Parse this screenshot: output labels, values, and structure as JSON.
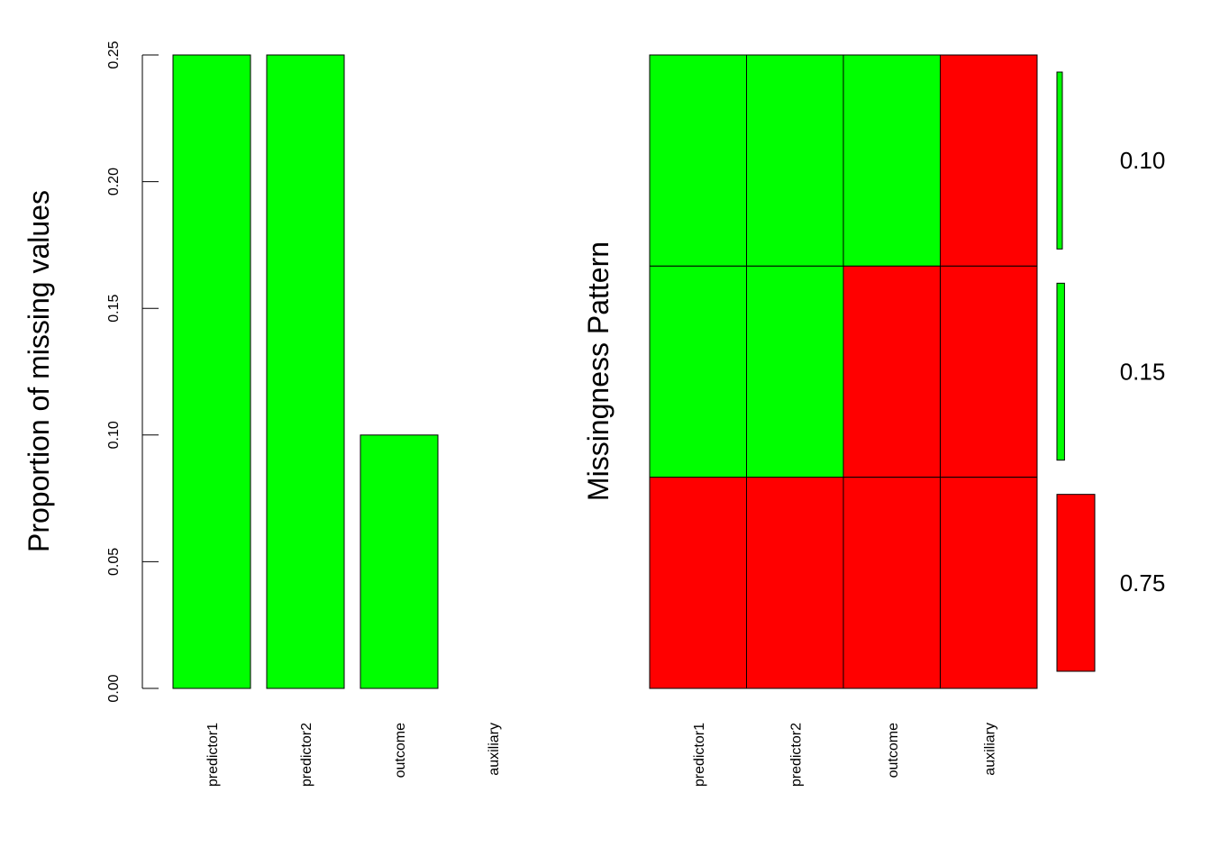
{
  "colors": {
    "observed": "#00ff00",
    "missing": "#ff0000",
    "stroke": "#000000"
  },
  "chart_data": [
    {
      "type": "bar",
      "ylabel": "Proportion of missing values",
      "ylim": [
        0,
        0.25
      ],
      "yticks": [
        "0.00",
        "0.05",
        "0.10",
        "0.15",
        "0.20",
        "0.25"
      ],
      "yticks_values": [
        0,
        0.05,
        0.1,
        0.15,
        0.2,
        0.25
      ],
      "categories": [
        "predictor1",
        "predictor2",
        "outcome",
        "auxiliary"
      ],
      "values": [
        0.25,
        0.25,
        0.1,
        0.0
      ],
      "bar_color": "#00ff00"
    },
    {
      "type": "heatmap",
      "ylabel": "Missingness Pattern",
      "columns": [
        "predictor1",
        "predictor2",
        "outcome",
        "auxiliary"
      ],
      "patterns": [
        {
          "cells": [
            "observed",
            "observed",
            "observed",
            "missing"
          ],
          "proportion": 0.1,
          "proportion_label": "0.10"
        },
        {
          "cells": [
            "observed",
            "observed",
            "missing",
            "missing"
          ],
          "proportion": 0.15,
          "proportion_label": "0.15"
        },
        {
          "cells": [
            "missing",
            "missing",
            "missing",
            "missing"
          ],
          "proportion": 0.75,
          "proportion_label": "0.75"
        }
      ]
    }
  ]
}
